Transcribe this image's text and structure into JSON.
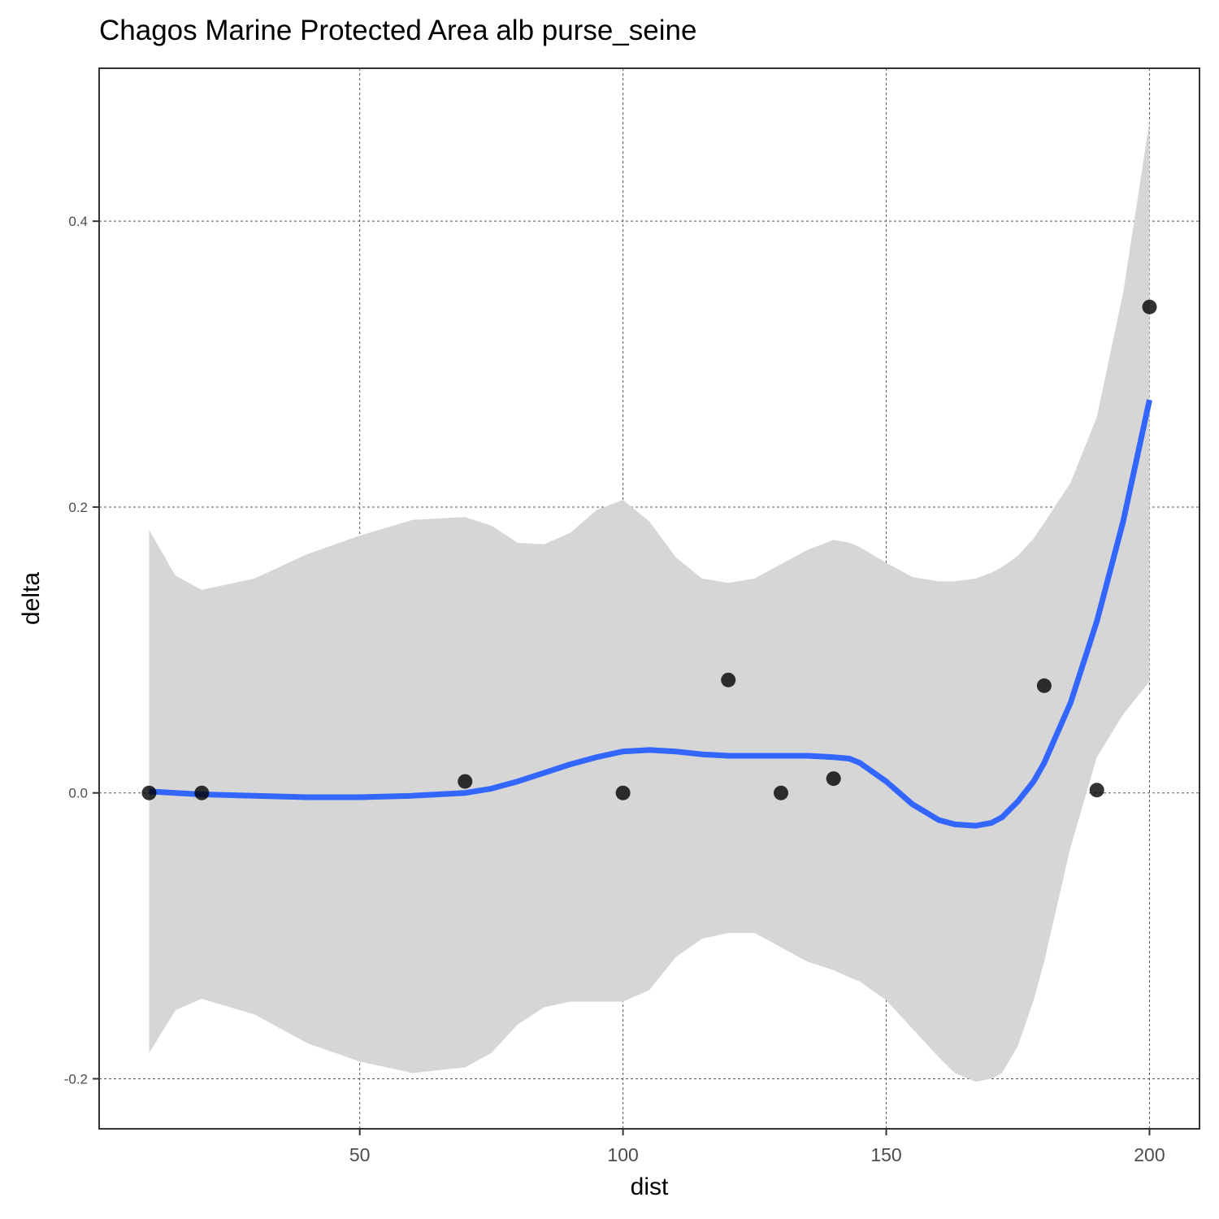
{
  "chart_data": {
    "type": "scatter",
    "title": "Chagos Marine Protected Area alb purse_seine",
    "xlabel": "dist",
    "ylabel": "delta",
    "xlim": [
      0.5,
      209.5
    ],
    "ylim": [
      -0.235,
      0.507
    ],
    "x_ticks": [
      50,
      100,
      150,
      200
    ],
    "x_tick_labels": [
      "50",
      "100",
      "150",
      "200"
    ],
    "y_ticks": [
      -0.2,
      0.0,
      0.2,
      0.4
    ],
    "y_tick_labels": [
      "-0.2",
      "0.0",
      "0.2",
      "0.4"
    ],
    "grid": true,
    "colors": {
      "points": "#000000",
      "smooth": "#3366ff",
      "ribbon": "#d6d6d6"
    },
    "points": [
      {
        "x": 10,
        "y": 0.0
      },
      {
        "x": 20,
        "y": 0.0
      },
      {
        "x": 70,
        "y": 0.008
      },
      {
        "x": 100,
        "y": 0.0
      },
      {
        "x": 120,
        "y": 0.079
      },
      {
        "x": 130,
        "y": 0.0
      },
      {
        "x": 140,
        "y": 0.01
      },
      {
        "x": 180,
        "y": 0.075
      },
      {
        "x": 190,
        "y": 0.002
      },
      {
        "x": 200,
        "y": 0.34
      }
    ],
    "smooth": {
      "x": [
        10,
        15,
        20,
        30,
        40,
        50,
        60,
        70,
        75,
        80,
        85,
        90,
        95,
        100,
        105,
        110,
        115,
        120,
        125,
        130,
        135,
        140,
        143,
        145,
        150,
        155,
        160,
        163,
        167,
        170,
        172,
        175,
        178,
        180,
        185,
        190,
        195,
        200
      ],
      "y": [
        0.001,
        0.0,
        -0.001,
        -0.002,
        -0.003,
        -0.003,
        -0.002,
        0.0,
        0.003,
        0.008,
        0.014,
        0.02,
        0.025,
        0.029,
        0.03,
        0.029,
        0.027,
        0.026,
        0.026,
        0.026,
        0.026,
        0.025,
        0.024,
        0.021,
        0.008,
        -0.008,
        -0.019,
        -0.022,
        -0.023,
        -0.021,
        -0.017,
        -0.006,
        0.008,
        0.021,
        0.063,
        0.12,
        0.19,
        0.275
      ],
      "upper": [
        0.184,
        0.152,
        0.142,
        0.15,
        0.167,
        0.18,
        0.191,
        0.193,
        0.187,
        0.175,
        0.174,
        0.182,
        0.198,
        0.205,
        0.19,
        0.165,
        0.15,
        0.147,
        0.15,
        0.16,
        0.17,
        0.177,
        0.175,
        0.172,
        0.161,
        0.151,
        0.148,
        0.148,
        0.15,
        0.154,
        0.158,
        0.166,
        0.178,
        0.189,
        0.217,
        0.263,
        0.35,
        0.47
      ],
      "lower": [
        -0.182,
        -0.152,
        -0.144,
        -0.155,
        -0.175,
        -0.188,
        -0.196,
        -0.192,
        -0.182,
        -0.162,
        -0.15,
        -0.146,
        -0.146,
        -0.146,
        -0.138,
        -0.115,
        -0.102,
        -0.098,
        -0.098,
        -0.108,
        -0.118,
        -0.124,
        -0.129,
        -0.132,
        -0.145,
        -0.165,
        -0.185,
        -0.196,
        -0.202,
        -0.2,
        -0.196,
        -0.177,
        -0.145,
        -0.118,
        -0.038,
        0.025,
        0.055,
        0.078
      ]
    }
  }
}
